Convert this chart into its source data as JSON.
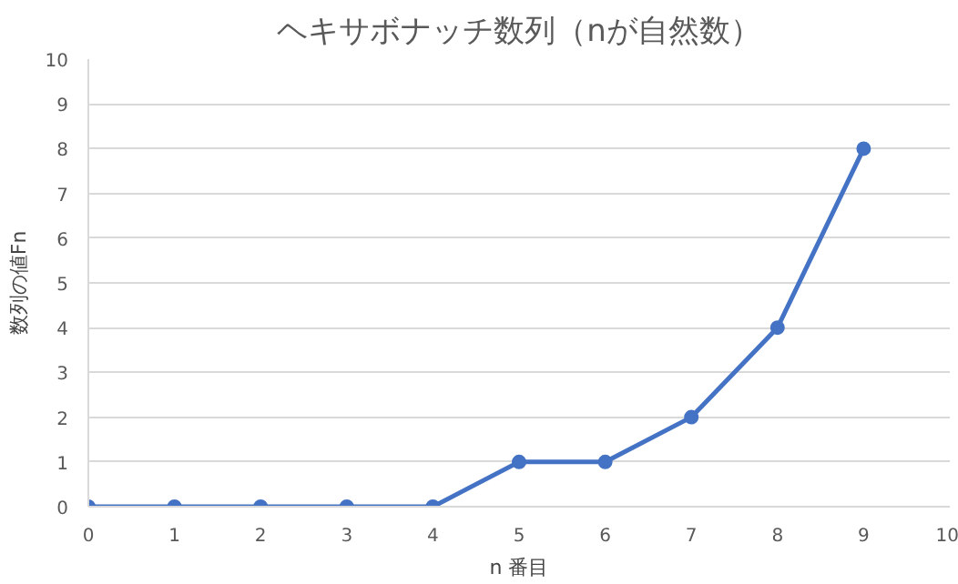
{
  "chart_data": {
    "type": "line",
    "title": "ヘキサボナッチ数列（nが自然数）",
    "xlabel": "n 番目",
    "ylabel": "数列の値Fn",
    "x": [
      0,
      1,
      2,
      3,
      4,
      5,
      6,
      7,
      8,
      9
    ],
    "series": [
      {
        "color": "#4472c4",
        "values": [
          0,
          0,
          0,
          0,
          0,
          1,
          1,
          2,
          4,
          8
        ]
      }
    ],
    "xlim": [
      0,
      10
    ],
    "ylim": [
      0,
      10
    ],
    "xticks": [
      0,
      1,
      2,
      3,
      4,
      5,
      6,
      7,
      8,
      9,
      10
    ],
    "yticks": [
      0,
      1,
      2,
      3,
      4,
      5,
      6,
      7,
      8,
      9,
      10
    ],
    "grid": "y",
    "marker": "circle",
    "line_style": "solid"
  }
}
